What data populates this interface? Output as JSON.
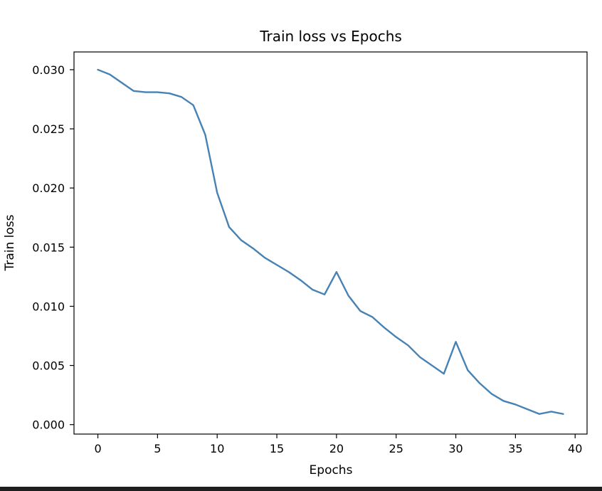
{
  "chart_data": {
    "type": "line",
    "title": "Train loss vs Epochs",
    "xlabel": "Epochs",
    "ylabel": "Train loss",
    "xlim": [
      -2,
      41
    ],
    "ylim": [
      -0.0008,
      0.0315
    ],
    "xticks": [
      0,
      5,
      10,
      15,
      20,
      25,
      30,
      35,
      40
    ],
    "xtick_labels": [
      "0",
      "5",
      "10",
      "15",
      "20",
      "25",
      "30",
      "35",
      "40"
    ],
    "yticks": [
      0.0,
      0.005,
      0.01,
      0.015,
      0.02,
      0.025,
      0.03
    ],
    "ytick_labels": [
      "0.000",
      "0.005",
      "0.010",
      "0.015",
      "0.020",
      "0.025",
      "0.030"
    ],
    "grid": false,
    "line_color": "#4682b4",
    "series": [
      {
        "x": [
          0,
          1,
          2,
          3,
          4,
          5,
          6,
          7,
          8,
          9,
          10,
          11,
          12,
          13,
          14,
          15,
          16,
          17,
          18,
          19,
          20,
          21,
          22,
          23,
          24,
          25,
          26,
          27,
          28,
          29,
          30,
          31,
          32,
          33,
          34,
          35,
          36,
          37,
          38,
          39
        ],
        "values": [
          0.03,
          0.0296,
          0.0289,
          0.0282,
          0.0281,
          0.0281,
          0.028,
          0.0277,
          0.027,
          0.0245,
          0.0196,
          0.0167,
          0.0156,
          0.0149,
          0.0141,
          0.0135,
          0.0129,
          0.0122,
          0.0114,
          0.011,
          0.0129,
          0.0109,
          0.0096,
          0.0091,
          0.0082,
          0.0074,
          0.0067,
          0.0057,
          0.005,
          0.0043,
          0.007,
          0.0046,
          0.0035,
          0.0026,
          0.002,
          0.0017,
          0.0013,
          0.0009,
          0.0011,
          0.0009
        ]
      }
    ]
  }
}
